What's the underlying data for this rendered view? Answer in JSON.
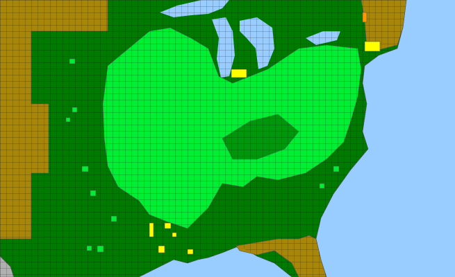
{
  "map": {
    "colors": {
      "water": "#99ccff",
      "land_present": "#007a00",
      "land_native_dense": "#00ee33",
      "outside_range": "#a8860a",
      "highlight_yellow": "#ffff00",
      "highlight_orange": "#ff9900",
      "no_data": "#b0b0b0",
      "county_border": "#555555"
    }
  }
}
